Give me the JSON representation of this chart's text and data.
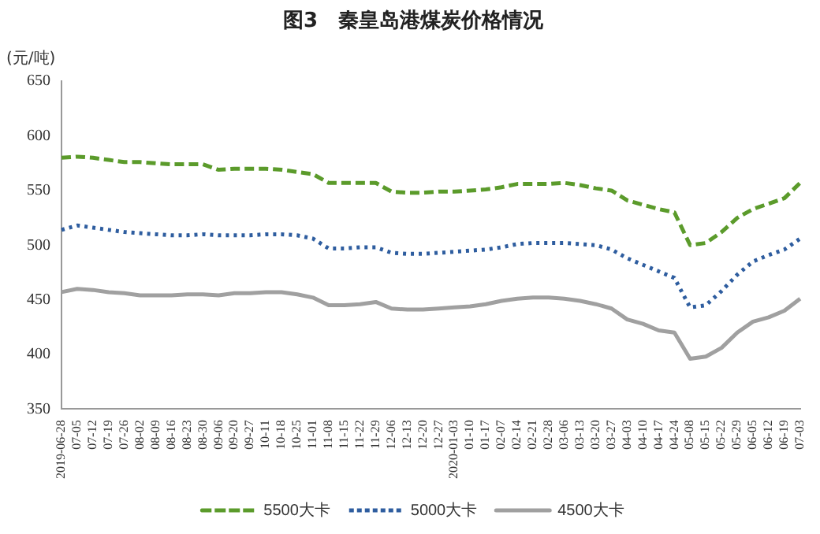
{
  "chart_data": {
    "type": "line",
    "title": "图3　秦皇岛港煤炭价格情况",
    "ylabel": "(元/吨)",
    "categories": [
      "2019-06-28",
      "07-05",
      "07-12",
      "07-19",
      "07-26",
      "08-02",
      "08-09",
      "08-16",
      "08-23",
      "08-30",
      "09-06",
      "09-20",
      "09-27",
      "10-11",
      "10-18",
      "10-25",
      "11-01",
      "11-08",
      "11-15",
      "11-22",
      "11-29",
      "12-06",
      "12-13",
      "12-20",
      "12-27",
      "2020-01-03",
      "01-10",
      "01-17",
      "02-07",
      "02-14",
      "02-21",
      "02-28",
      "03-06",
      "03-13",
      "03-20",
      "03-27",
      "04-03",
      "04-10",
      "04-17",
      "04-24",
      "05-08",
      "05-15",
      "05-22",
      "05-29",
      "06-05",
      "06-12",
      "06-19",
      "07-03"
    ],
    "series": [
      {
        "name": "5500大卡",
        "color": "#5b9b2b",
        "line_style": "dashed",
        "values": [
          580,
          581,
          580,
          578,
          576,
          576,
          575,
          574,
          574,
          574,
          569,
          570,
          570,
          570,
          569,
          567,
          565,
          557,
          557,
          557,
          557,
          549,
          548,
          548,
          549,
          549,
          550,
          551,
          553,
          556,
          556,
          556,
          557,
          555,
          552,
          550,
          541,
          537,
          533,
          530,
          500,
          502,
          512,
          525,
          533,
          538,
          543,
          557
        ]
      },
      {
        "name": "5000大卡",
        "color": "#2e5d9f",
        "line_style": "dotted",
        "values": [
          514,
          518,
          516,
          514,
          512,
          511,
          510,
          509,
          509,
          510,
          509,
          509,
          509,
          510,
          510,
          509,
          506,
          497,
          497,
          498,
          498,
          493,
          492,
          492,
          493,
          494,
          495,
          496,
          498,
          501,
          502,
          502,
          502,
          501,
          500,
          496,
          488,
          482,
          476,
          470,
          443,
          445,
          458,
          473,
          485,
          491,
          496,
          506
        ]
      },
      {
        "name": "4500大卡",
        "color": "#a0a0a0",
        "line_style": "solid",
        "values": [
          457,
          460,
          459,
          457,
          456,
          454,
          454,
          454,
          455,
          455,
          454,
          456,
          456,
          457,
          457,
          455,
          452,
          445,
          445,
          446,
          448,
          442,
          441,
          441,
          442,
          443,
          444,
          446,
          449,
          451,
          452,
          452,
          451,
          449,
          446,
          442,
          432,
          428,
          422,
          420,
          396,
          398,
          406,
          420,
          430,
          434,
          440,
          451
        ]
      }
    ],
    "ylim": [
      350,
      650
    ],
    "yticks": [
      350,
      400,
      450,
      500,
      550,
      600,
      650
    ],
    "grid": false,
    "legend": "bottom",
    "marker": "none"
  }
}
